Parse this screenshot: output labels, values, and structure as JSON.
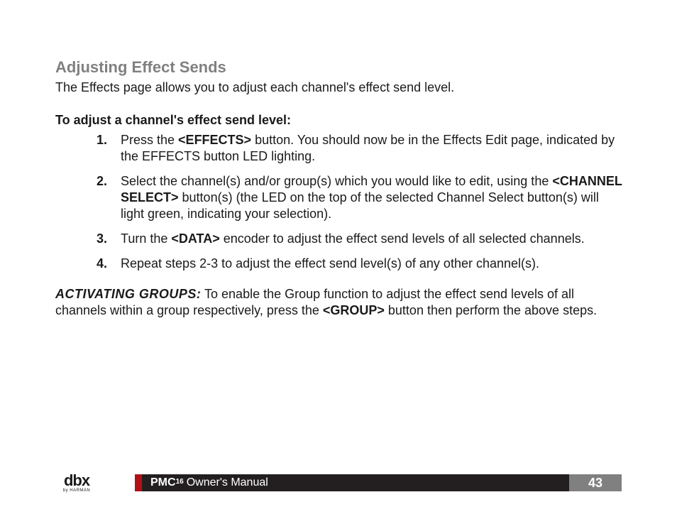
{
  "colors": {
    "heading_gray": "#808080",
    "body_text": "#1a1a1a",
    "footer_red": "#b11116",
    "footer_dark": "#231f20",
    "footer_page_bg": "#808080",
    "footer_text": "#ffffff",
    "background": "#ffffff"
  },
  "typography": {
    "heading_fontsize": 22,
    "body_fontsize": 18,
    "footer_fontsize": 16,
    "page_number_fontsize": 18,
    "logo_fontsize": 22,
    "logo_sub_fontsize": 6
  },
  "section": {
    "heading": "Adjusting Effect Sends",
    "intro": "The Effects page allows you to adjust each channel's effect send level.",
    "sub_heading": "To adjust a channel's effect send level:",
    "steps": [
      {
        "pre": "Press the ",
        "bold": "<EFFECTS>",
        "post": " button. You should now be in the Effects Edit page, indicated by the EFFECTS button LED lighting."
      },
      {
        "pre": "Select the channel(s) and/or group(s) which you would like to edit, using the ",
        "bold": "<CHANNEL SELECT>",
        "post": " button(s) (the LED on the top of the selected Channel Select button(s) will light green, indicating your selection)."
      },
      {
        "pre": "Turn the ",
        "bold": "<DATA>",
        "post": " encoder to adjust the effect send levels of all selected channels."
      },
      {
        "pre": "Repeat steps 2-3 to adjust the effect send level(s) of any other channel(s).",
        "bold": "",
        "post": ""
      }
    ],
    "note": {
      "label": "ACTIVATING GROUPS:",
      "pre": " To enable the Group function to adjust the effect send levels of all channels within a group respectively, press the ",
      "bold": "<GROUP>",
      "post": " button then perform the above steps."
    }
  },
  "footer": {
    "logo_main": "dbx",
    "logo_sub": "by HARMAN",
    "product": "PMC",
    "product_sup": "16",
    "manual": "Owner's Manual",
    "page": "43"
  }
}
